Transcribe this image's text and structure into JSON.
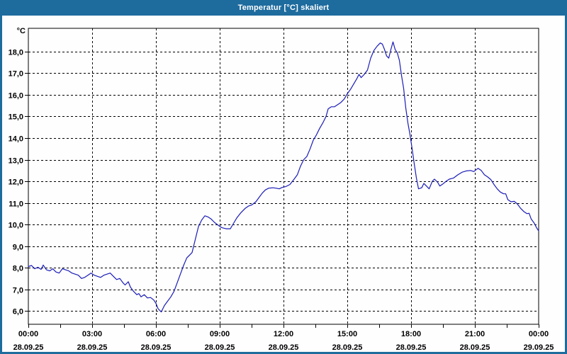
{
  "window": {
    "title": "Temperatur [°C] skaliert",
    "titlebar_color": "#1e6b9e"
  },
  "colors": {
    "line": "#1c1cb8",
    "grid": "#000000",
    "text": "#000000",
    "plot_background": "#fdfefd"
  },
  "chart_data": {
    "type": "line",
    "title": "Temperatur [°C] skaliert",
    "ylabel": "°C",
    "xlabel": "",
    "grid": "dashed",
    "legend": "none",
    "xlim_hours": [
      0,
      24
    ],
    "ylim": [
      5.38,
      19.08
    ],
    "x_major_ticks": [
      {
        "hours": 0,
        "time": "00:00",
        "date": "28.09.25"
      },
      {
        "hours": 3,
        "time": "03:00",
        "date": "28.09.25"
      },
      {
        "hours": 6,
        "time": "06:00",
        "date": "28.09.25"
      },
      {
        "hours": 9,
        "time": "09:00",
        "date": "28.09.25"
      },
      {
        "hours": 12,
        "time": "12:00",
        "date": "28.09.25"
      },
      {
        "hours": 15,
        "time": "15:00",
        "date": "28.09.25"
      },
      {
        "hours": 18,
        "time": "18:00",
        "date": "28.09.25"
      },
      {
        "hours": 21,
        "time": "21:00",
        "date": "28.09.25"
      },
      {
        "hours": 24,
        "time": "00:00",
        "date": "29.09.25"
      }
    ],
    "x_gridline_hours": [
      3,
      6,
      9,
      12,
      15,
      18,
      21
    ],
    "x_minor_tick_step_hours": 1.5,
    "y_ticks": [
      {
        "value": 6,
        "label": "6,0"
      },
      {
        "value": 7,
        "label": "7,0"
      },
      {
        "value": 8,
        "label": "8,0"
      },
      {
        "value": 9,
        "label": "9,0"
      },
      {
        "value": 10,
        "label": "10,0"
      },
      {
        "value": 11,
        "label": "11,0"
      },
      {
        "value": 12,
        "label": "12,0"
      },
      {
        "value": 13,
        "label": "13,0"
      },
      {
        "value": 14,
        "label": "14,0"
      },
      {
        "value": 15,
        "label": "15,0"
      },
      {
        "value": 16,
        "label": "16,0"
      },
      {
        "value": 17,
        "label": "17,0"
      },
      {
        "value": 18,
        "label": "18,0"
      }
    ],
    "series": [
      {
        "name": "Temperatur",
        "unit": "°C",
        "points_hours_degC": [
          [
            0,
            8.05
          ],
          [
            0.15,
            8.1
          ],
          [
            0.3,
            7.95
          ],
          [
            0.45,
            8.02
          ],
          [
            0.6,
            7.92
          ],
          [
            0.7,
            8.12
          ],
          [
            0.85,
            7.9
          ],
          [
            1,
            7.85
          ],
          [
            1.15,
            7.95
          ],
          [
            1.3,
            7.8
          ],
          [
            1.45,
            7.75
          ],
          [
            1.6,
            7.95
          ],
          [
            1.75,
            7.9
          ],
          [
            1.9,
            7.85
          ],
          [
            2.05,
            7.75
          ],
          [
            2.2,
            7.7
          ],
          [
            2.35,
            7.65
          ],
          [
            2.5,
            7.5
          ],
          [
            2.65,
            7.55
          ],
          [
            2.8,
            7.65
          ],
          [
            2.95,
            7.75
          ],
          [
            3.1,
            7.65
          ],
          [
            3.25,
            7.6
          ],
          [
            3.4,
            7.55
          ],
          [
            3.55,
            7.65
          ],
          [
            3.7,
            7.7
          ],
          [
            3.85,
            7.75
          ],
          [
            4,
            7.6
          ],
          [
            4.15,
            7.45
          ],
          [
            4.3,
            7.5
          ],
          [
            4.45,
            7.3
          ],
          [
            4.55,
            7.2
          ],
          [
            4.7,
            7.35
          ],
          [
            4.8,
            7.1
          ],
          [
            4.95,
            6.9
          ],
          [
            5.1,
            6.75
          ],
          [
            5.2,
            6.8
          ],
          [
            5.3,
            6.65
          ],
          [
            5.45,
            6.75
          ],
          [
            5.6,
            6.6
          ],
          [
            5.75,
            6.62
          ],
          [
            5.9,
            6.5
          ],
          [
            6,
            6.35
          ],
          [
            6.1,
            6.1
          ],
          [
            6.25,
            5.95
          ],
          [
            6.4,
            6.25
          ],
          [
            6.55,
            6.45
          ],
          [
            6.7,
            6.65
          ],
          [
            6.85,
            6.9
          ],
          [
            7,
            7.3
          ],
          [
            7.15,
            7.7
          ],
          [
            7.3,
            8.1
          ],
          [
            7.45,
            8.45
          ],
          [
            7.6,
            8.6
          ],
          [
            7.7,
            8.7
          ],
          [
            7.85,
            9.3
          ],
          [
            8,
            9.9
          ],
          [
            8.15,
            10.2
          ],
          [
            8.3,
            10.4
          ],
          [
            8.45,
            10.35
          ],
          [
            8.6,
            10.25
          ],
          [
            8.75,
            10.1
          ],
          [
            8.95,
            9.95
          ],
          [
            9.1,
            9.85
          ],
          [
            9.3,
            9.8
          ],
          [
            9.5,
            9.8
          ],
          [
            9.65,
            10.05
          ],
          [
            9.8,
            10.3
          ],
          [
            10,
            10.55
          ],
          [
            10.2,
            10.75
          ],
          [
            10.35,
            10.85
          ],
          [
            10.5,
            10.9
          ],
          [
            10.7,
            11.05
          ],
          [
            10.85,
            11.25
          ],
          [
            11,
            11.45
          ],
          [
            11.15,
            11.6
          ],
          [
            11.3,
            11.68
          ],
          [
            11.5,
            11.7
          ],
          [
            11.65,
            11.68
          ],
          [
            11.8,
            11.65
          ],
          [
            11.95,
            11.72
          ],
          [
            12.1,
            11.75
          ],
          [
            12.3,
            11.85
          ],
          [
            12.5,
            12.1
          ],
          [
            12.65,
            12.3
          ],
          [
            12.8,
            12.7
          ],
          [
            12.95,
            13
          ],
          [
            13.1,
            13.15
          ],
          [
            13.25,
            13.5
          ],
          [
            13.4,
            13.9
          ],
          [
            13.55,
            14.15
          ],
          [
            13.7,
            14.45
          ],
          [
            13.85,
            14.7
          ],
          [
            14,
            15
          ],
          [
            14.1,
            15.35
          ],
          [
            14.25,
            15.45
          ],
          [
            14.4,
            15.45
          ],
          [
            14.55,
            15.55
          ],
          [
            14.7,
            15.65
          ],
          [
            14.85,
            15.8
          ],
          [
            15,
            16.05
          ],
          [
            15.15,
            16.25
          ],
          [
            15.3,
            16.5
          ],
          [
            15.45,
            16.75
          ],
          [
            15.55,
            16.95
          ],
          [
            15.65,
            16.8
          ],
          [
            15.8,
            16.95
          ],
          [
            15.95,
            17.15
          ],
          [
            16.1,
            17.7
          ],
          [
            16.25,
            18.05
          ],
          [
            16.4,
            18.25
          ],
          [
            16.55,
            18.4
          ],
          [
            16.65,
            18.35
          ],
          [
            16.75,
            18.1
          ],
          [
            16.85,
            17.8
          ],
          [
            16.95,
            17.7
          ],
          [
            17.05,
            18.1
          ],
          [
            17.15,
            18.45
          ],
          [
            17.25,
            18.1
          ],
          [
            17.35,
            17.95
          ],
          [
            17.45,
            17.6
          ],
          [
            17.55,
            16.9
          ],
          [
            17.65,
            16.3
          ],
          [
            17.75,
            15.4
          ],
          [
            17.85,
            14.7
          ],
          [
            17.95,
            14.15
          ],
          [
            18.05,
            13.5
          ],
          [
            18.15,
            12.8
          ],
          [
            18.25,
            12.15
          ],
          [
            18.35,
            11.65
          ],
          [
            18.5,
            11.7
          ],
          [
            18.6,
            11.9
          ],
          [
            18.7,
            11.8
          ],
          [
            18.85,
            11.65
          ],
          [
            19,
            12
          ],
          [
            19.1,
            12.1
          ],
          [
            19.25,
            11.95
          ],
          [
            19.35,
            11.78
          ],
          [
            19.5,
            11.88
          ],
          [
            19.65,
            12
          ],
          [
            19.8,
            12.1
          ],
          [
            20,
            12.15
          ],
          [
            20.2,
            12.3
          ],
          [
            20.4,
            12.42
          ],
          [
            20.6,
            12.48
          ],
          [
            20.8,
            12.5
          ],
          [
            20.95,
            12.45
          ],
          [
            21.15,
            12.6
          ],
          [
            21.3,
            12.5
          ],
          [
            21.45,
            12.3
          ],
          [
            21.6,
            12.2
          ],
          [
            21.75,
            12.08
          ],
          [
            21.9,
            11.85
          ],
          [
            22.05,
            11.65
          ],
          [
            22.2,
            11.5
          ],
          [
            22.35,
            11.42
          ],
          [
            22.45,
            11.42
          ],
          [
            22.55,
            11.15
          ],
          [
            22.7,
            11.05
          ],
          [
            22.85,
            11.07
          ],
          [
            23,
            10.95
          ],
          [
            23.15,
            10.75
          ],
          [
            23.3,
            10.6
          ],
          [
            23.45,
            10.5
          ],
          [
            23.55,
            10.52
          ],
          [
            23.65,
            10.25
          ],
          [
            23.8,
            10.05
          ],
          [
            23.9,
            9.85
          ],
          [
            24,
            9.7
          ]
        ]
      }
    ]
  }
}
